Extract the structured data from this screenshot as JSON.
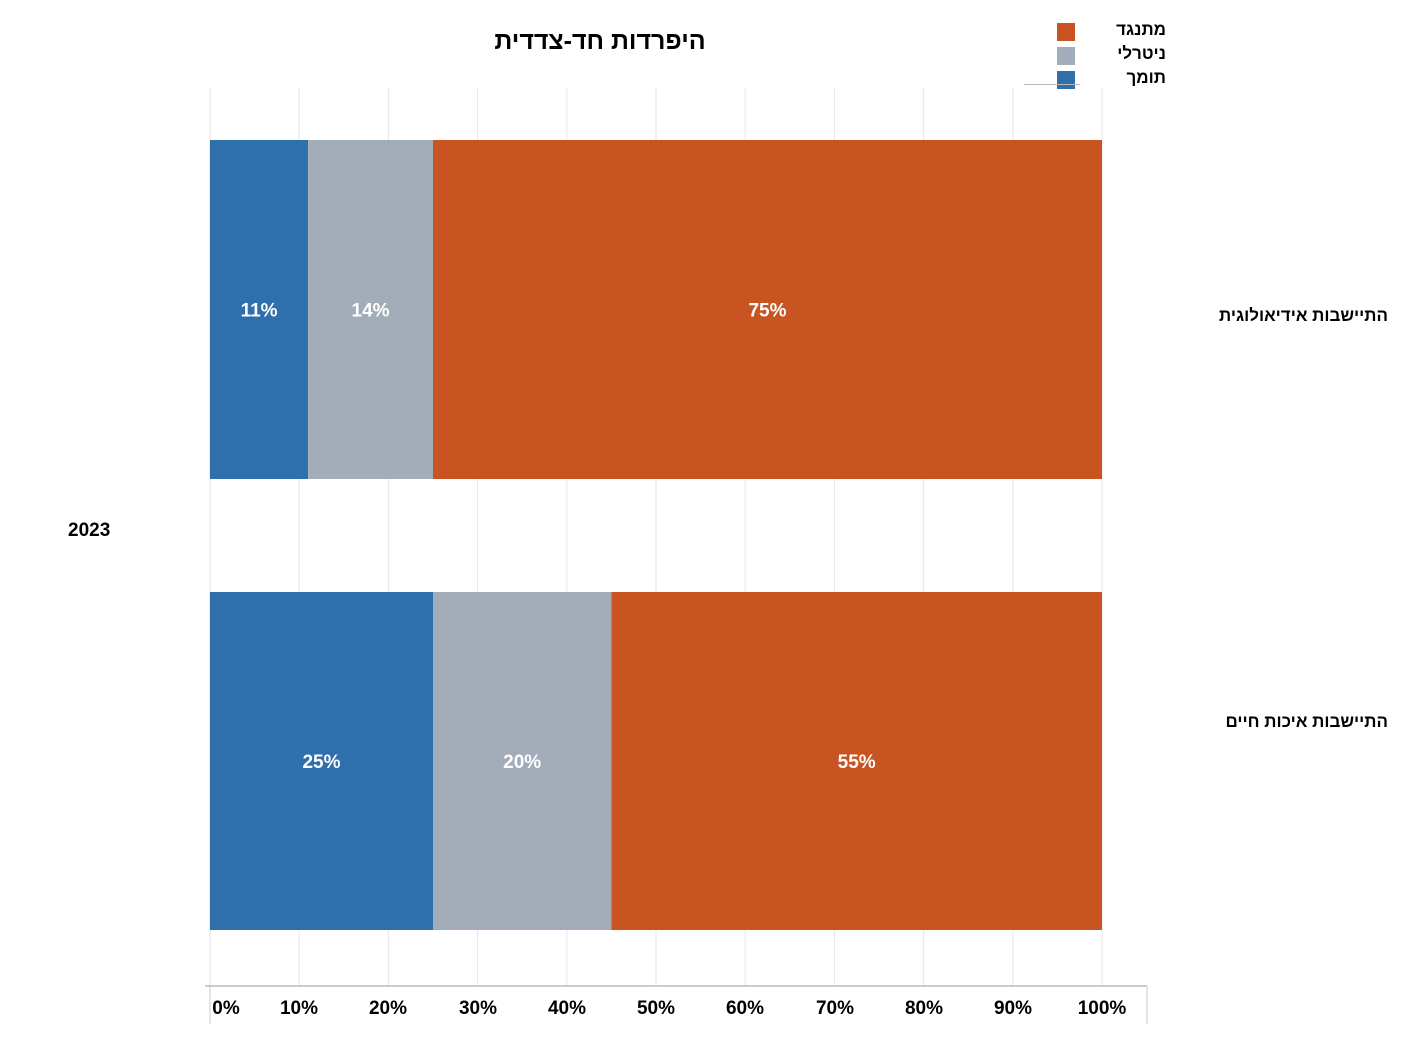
{
  "chart_data": {
    "type": "bar",
    "orientation": "horizontal",
    "stacked": true,
    "title": "היפרדות חד-צדדית",
    "group_label": "2023",
    "categories": [
      "התיישבות אידיאולוגית",
      "התיישבות איכות חיים"
    ],
    "series": [
      {
        "name": "תומך",
        "values": [
          11,
          25
        ],
        "labels": [
          "11%",
          "25%"
        ],
        "color": "#2f6fab"
      },
      {
        "name": "ניטרלי",
        "values": [
          14,
          20
        ],
        "labels": [
          "14%",
          "20%"
        ],
        "color": "#a3adb9"
      },
      {
        "name": "מתנגד",
        "values": [
          75,
          55
        ],
        "labels": [
          "75%",
          "55%"
        ],
        "color": "#c85422"
      }
    ],
    "legend_order": [
      "מתנגד",
      "ניטרלי",
      "תומך"
    ],
    "legend_position": "top-right",
    "xlim": [
      0,
      100
    ],
    "xticks": [
      "0%",
      "10%",
      "20%",
      "30%",
      "40%",
      "50%",
      "60%",
      "70%",
      "80%",
      "90%",
      "100%"
    ],
    "grid": true,
    "xlabel": "",
    "ylabel": ""
  }
}
